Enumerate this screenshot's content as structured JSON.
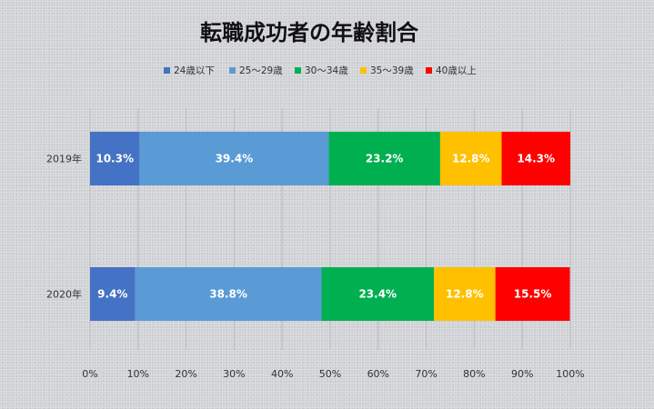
{
  "chart_data": {
    "type": "bar",
    "orientation": "horizontal",
    "stacked": true,
    "title": "転職成功者の年齢割合",
    "categories": [
      "2019年",
      "2020年"
    ],
    "series": [
      {
        "name": "24歳以下",
        "color": "#4472c4",
        "values": [
          10.3,
          9.4
        ],
        "labels": [
          "10.3%",
          "9.4%"
        ]
      },
      {
        "name": "25～29歳",
        "color": "#5b9bd5",
        "values": [
          39.4,
          38.8
        ],
        "labels": [
          "39.4%",
          "38.8%"
        ]
      },
      {
        "name": "30～34歳",
        "color": "#00b050",
        "values": [
          23.2,
          23.4
        ],
        "labels": [
          "23.2%",
          "23.4%"
        ]
      },
      {
        "name": "35～39歳",
        "color": "#ffc000",
        "values": [
          12.8,
          12.8
        ],
        "labels": [
          "12.8%",
          "12.8%"
        ]
      },
      {
        "name": "40歳以上",
        "color": "#ff0000",
        "values": [
          14.3,
          15.5
        ],
        "labels": [
          "14.3%",
          "15.5%"
        ]
      }
    ],
    "xlim": [
      0,
      100
    ],
    "xticks": [
      0,
      10,
      20,
      30,
      40,
      50,
      60,
      70,
      80,
      90,
      100
    ],
    "xtick_labels": [
      "0%",
      "10%",
      "20%",
      "30%",
      "40%",
      "50%",
      "60%",
      "70%",
      "80%",
      "90%",
      "100%"
    ],
    "xlabel": "",
    "ylabel": "",
    "grid": true,
    "legend_position": "top"
  }
}
